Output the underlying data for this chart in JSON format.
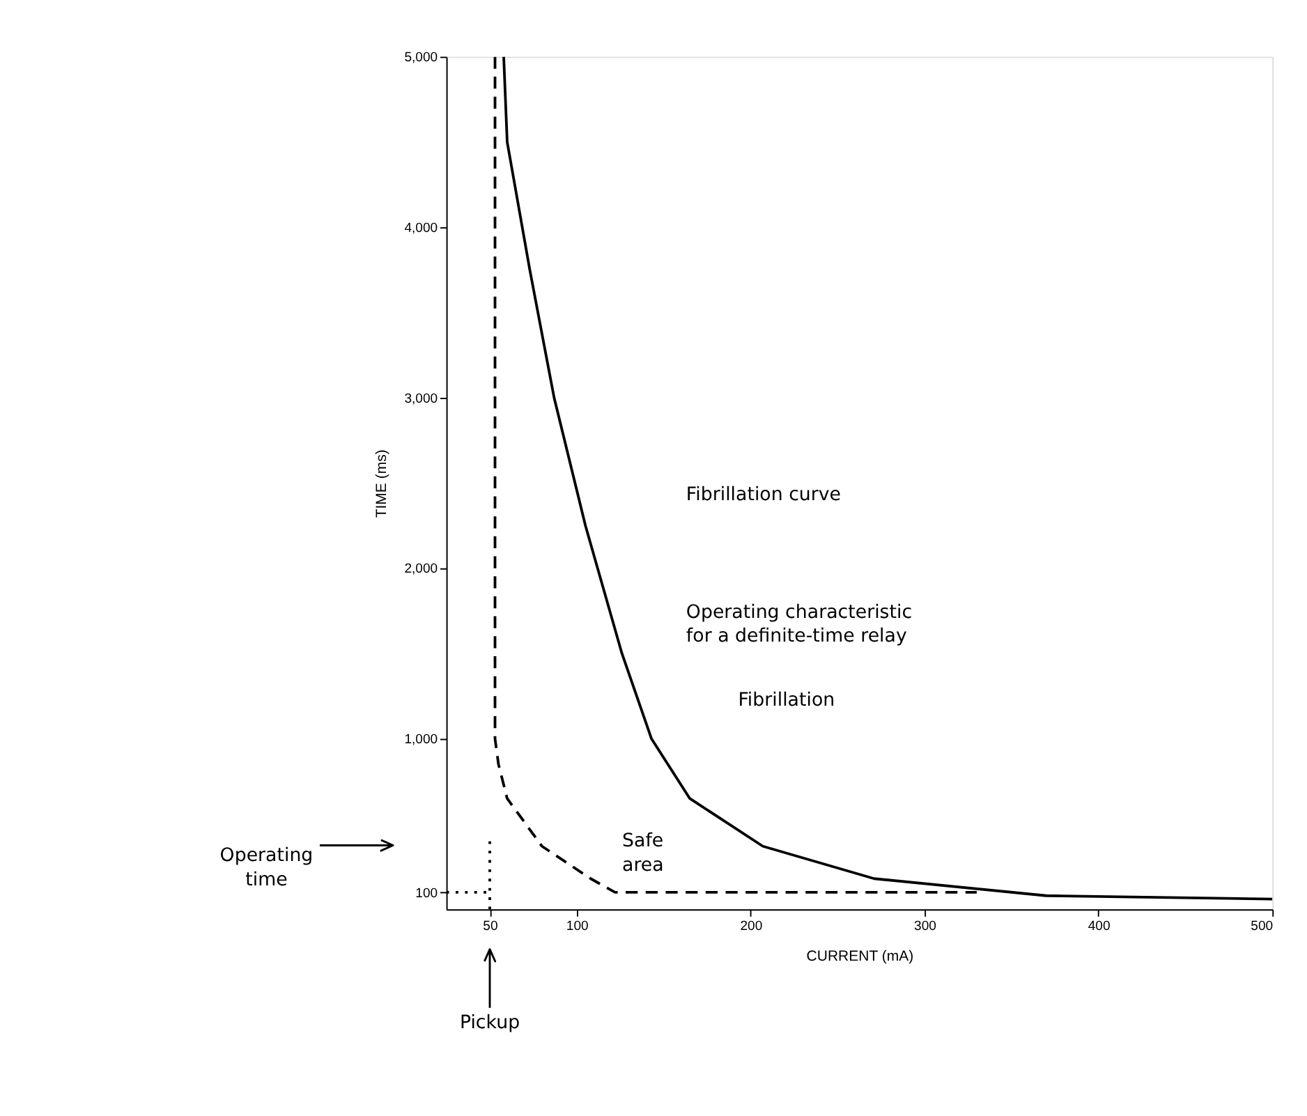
{
  "chart_data": {
    "type": "line",
    "xlabel": "CURRENT (mA)",
    "ylabel": "TIME (ms)",
    "xlim": [
      25,
      500
    ],
    "xticks": [
      50,
      100,
      200,
      300,
      400,
      500
    ],
    "ylim": [
      0,
      5000
    ],
    "yticks": [
      100,
      {
        "value": 1000,
        "label": "1,000"
      },
      {
        "value": 2000,
        "label": "2,000"
      },
      {
        "value": 3000,
        "label": "3,000"
      },
      {
        "value": 4000,
        "label": "4,000"
      },
      {
        "value": 5000,
        "label": "5,000"
      }
    ],
    "grid": false,
    "marker": "none",
    "series": [
      {
        "color": "#000000",
        "line_style": "solid",
        "x": [
          58,
          60,
          73,
          87,
          105,
          126,
          143,
          165,
          207,
          271,
          370,
          500
        ],
        "values": [
          5000,
          4500,
          3750,
          3000,
          2250,
          1500,
          1000,
          650,
          370,
          180,
          80,
          60
        ]
      },
      {
        "color": "#000000",
        "line_style": "dashed",
        "x": [
          53,
          53,
          53,
          55,
          60,
          80,
          108,
          122,
          330
        ],
        "values": [
          5000,
          3000,
          1000,
          850,
          650,
          370,
          180,
          100,
          100
        ]
      },
      {
        "color": "#000000",
        "line_style": "dotted",
        "x": [
          25,
          50
        ],
        "values": [
          100,
          100
        ]
      },
      {
        "color": "#000000",
        "line_style": "dotted",
        "x": [
          50,
          50
        ],
        "values": [
          0,
          420
        ]
      }
    ],
    "annotations": [
      "Fibrillation curve",
      "Operating characteristic\nfor a definite-time relay",
      "Fibrillation",
      "Safe\narea",
      "Operating\ntime",
      "Pickup"
    ]
  }
}
